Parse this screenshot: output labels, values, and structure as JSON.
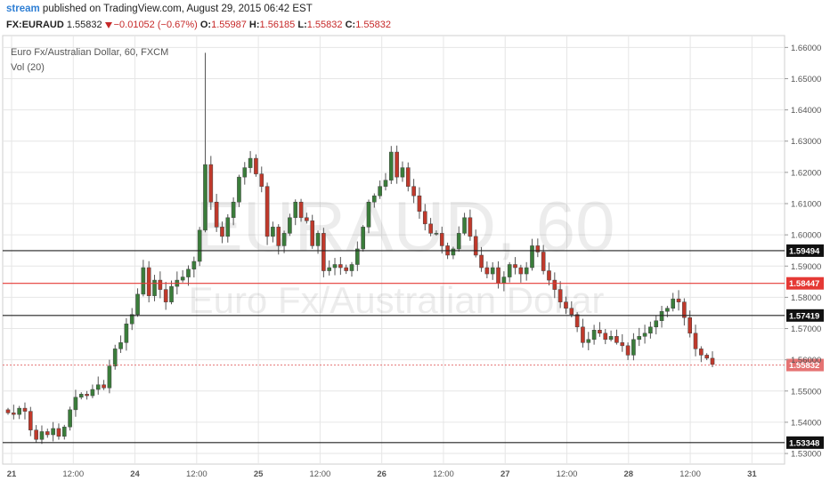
{
  "header": {
    "publisher": "stream",
    "published_text": "published on TradingView.com, August 29, 2015 06:42 EST",
    "symbol": "FX:EURAUD",
    "last": "1.55832",
    "change": "−0.01052 (−0.67%)",
    "o_label": "O:",
    "o_value": "1.55987",
    "h_label": "H:",
    "h_value": "1.56185",
    "l_label": "L:",
    "l_value": "1.55832",
    "c_label": "C:",
    "c_value": "1.55832"
  },
  "legend": {
    "title": "Euro Fx/Australian Dollar, 60, FXCM",
    "indicator": "Vol (20)"
  },
  "watermark": {
    "symbol": "EURAUD, 60",
    "name": "Euro Fx/Australian Dollar"
  },
  "colors": {
    "up": "#3a7d3a",
    "down": "#c0392b",
    "grid": "#e6e6e6",
    "level_line": "#222222",
    "red_line": "#e53935",
    "current_price": "#e57373"
  },
  "chart_data": {
    "type": "candlestick",
    "ylim": [
      1.5266,
      1.6638
    ],
    "y_ticks": [
      "1.53000",
      "1.54000",
      "1.55000",
      "1.56000",
      "1.57000",
      "1.58000",
      "1.59000",
      "1.60000",
      "1.61000",
      "1.62000",
      "1.63000",
      "1.64000",
      "1.65000",
      "1.66000"
    ],
    "x_ticks": [
      "21",
      "12:00",
      "24",
      "12:00",
      "25",
      "12:00",
      "26",
      "12:00",
      "27",
      "12:00",
      "28",
      "12:00",
      "31"
    ],
    "horizontal_levels": [
      {
        "value": 1.59494,
        "label": "1.59494",
        "style": "black"
      },
      {
        "value": 1.58447,
        "label": "1.58447",
        "style": "red"
      },
      {
        "value": 1.57419,
        "label": "1.57419",
        "style": "black"
      },
      {
        "value": 1.53348,
        "label": "1.53348",
        "style": "black"
      }
    ],
    "current_price": {
      "value": 1.55832,
      "label": "1.55832"
    },
    "close_path": [
      1.543,
      1.5425,
      1.5445,
      1.5435,
      1.5375,
      1.5345,
      1.537,
      1.536,
      1.538,
      1.5355,
      1.5385,
      1.544,
      1.548,
      1.549,
      1.5485,
      1.5505,
      1.552,
      1.551,
      1.558,
      1.5635,
      1.5655,
      1.5715,
      1.5745,
      1.581,
      1.5895,
      1.5805,
      1.5855,
      1.5825,
      1.5785,
      1.5835,
      1.5855,
      1.5865,
      1.589,
      1.5915,
      1.6015,
      1.6225,
      1.6105,
      1.6025,
      1.5995,
      1.6055,
      1.6105,
      1.6185,
      1.6215,
      1.6245,
      1.6195,
      1.6155,
      1.5995,
      1.6025,
      1.5965,
      1.6005,
      1.6055,
      1.6105,
      1.6055,
      1.6045,
      1.5965,
      1.6005,
      1.5885,
      1.5895,
      1.5905,
      1.5895,
      1.5885,
      1.5905,
      1.5955,
      1.6025,
      1.6105,
      1.6125,
      1.6155,
      1.6175,
      1.6265,
      1.6185,
      1.6215,
      1.6155,
      1.6125,
      1.6075,
      1.6035,
      1.6005,
      1.6005,
      1.5965,
      1.5935,
      1.5955,
      1.6005,
      1.6055,
      1.5995,
      1.5935,
      1.5895,
      1.5875,
      1.5895,
      1.5845,
      1.5865,
      1.5905,
      1.5895,
      1.5875,
      1.5895,
      1.5965,
      1.5945,
      1.5885,
      1.5855,
      1.5825,
      1.5785,
      1.5765,
      1.5745,
      1.5705,
      1.5655,
      1.5665,
      1.5695,
      1.5685,
      1.5665,
      1.5675,
      1.5655,
      1.5645,
      1.5615,
      1.5665,
      1.5675,
      1.5685,
      1.5705,
      1.5725,
      1.5755,
      1.5765,
      1.5795,
      1.5785,
      1.5735,
      1.5685,
      1.5635,
      1.5615,
      1.5605,
      1.5585
    ]
  }
}
